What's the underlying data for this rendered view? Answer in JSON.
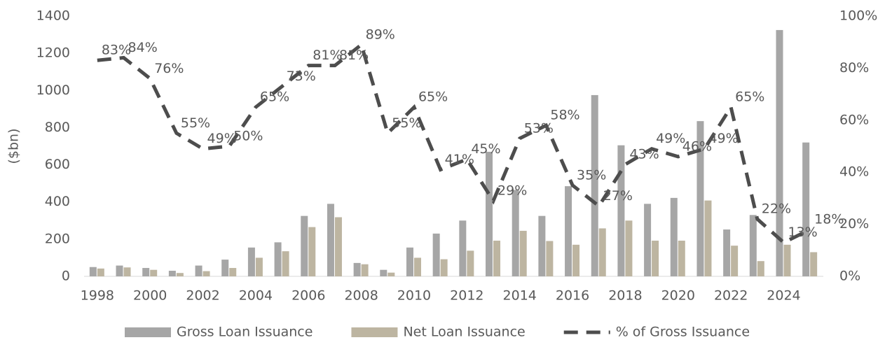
{
  "chart_data": {
    "type": "bar_line",
    "y_label": "($bn)",
    "categories": [
      "1998",
      null,
      "2000",
      null,
      "2002",
      null,
      "2004",
      null,
      "2006",
      null,
      "2008",
      null,
      "2010",
      null,
      "2012",
      null,
      "2014",
      null,
      "2016",
      null,
      "2018",
      null,
      "2020",
      null,
      "2022",
      null,
      "2024",
      null
    ],
    "series": [
      {
        "name": "Gross Loan Issuance",
        "type": "bar",
        "color": "#a6a6a6",
        "values": [
          50,
          58,
          45,
          30,
          58,
          90,
          155,
          183,
          325,
          390,
          72,
          35,
          155,
          230,
          300,
          670,
          465,
          325,
          485,
          975,
          705,
          390,
          422,
          835,
          252,
          330,
          1325,
          720
        ]
      },
      {
        "name": "Net Loan Issuance",
        "type": "bar",
        "color": "#bdb5a1",
        "values": [
          42,
          48,
          35,
          18,
          28,
          45,
          100,
          135,
          265,
          318,
          65,
          20,
          100,
          92,
          138,
          192,
          245,
          190,
          170,
          258,
          300,
          192,
          192,
          408,
          165,
          82,
          170,
          130
        ]
      },
      {
        "name": "% of Gross Issuance",
        "type": "line",
        "axis": "y2",
        "color": "#4d4d4d",
        "dashed": true,
        "values": [
          83,
          84,
          76,
          55,
          49,
          50,
          65,
          73,
          81,
          81,
          89,
          55,
          65,
          41,
          45,
          29,
          53,
          58,
          35,
          27,
          43,
          49,
          46,
          49,
          65,
          22,
          13,
          18
        ],
        "value_labels": [
          "83%",
          "84%",
          "76%",
          "55%",
          "49%",
          "50%",
          "65%",
          "73%",
          "81%",
          "81%",
          "89%",
          "55%",
          "65%",
          "41%",
          "45%",
          "29%",
          "53%",
          "58%",
          "35%",
          "27%",
          "43%",
          "49%",
          "46%",
          "49%",
          "65%",
          "22%",
          "13%",
          "18%"
        ]
      }
    ],
    "ylim": [
      0,
      1400
    ],
    "yticks": [
      0,
      200,
      400,
      600,
      800,
      1000,
      1200,
      1400
    ],
    "y2lim": [
      0,
      100
    ],
    "y2ticks": [
      {
        "value": 0,
        "label": "0%"
      },
      {
        "value": 20,
        "label": "20%"
      },
      {
        "value": 40,
        "label": "40%"
      },
      {
        "value": 60,
        "label": "60%"
      },
      {
        "value": 80,
        "label": "80%"
      },
      {
        "value": 100,
        "label": "100%"
      }
    ],
    "legend": "bottom"
  }
}
